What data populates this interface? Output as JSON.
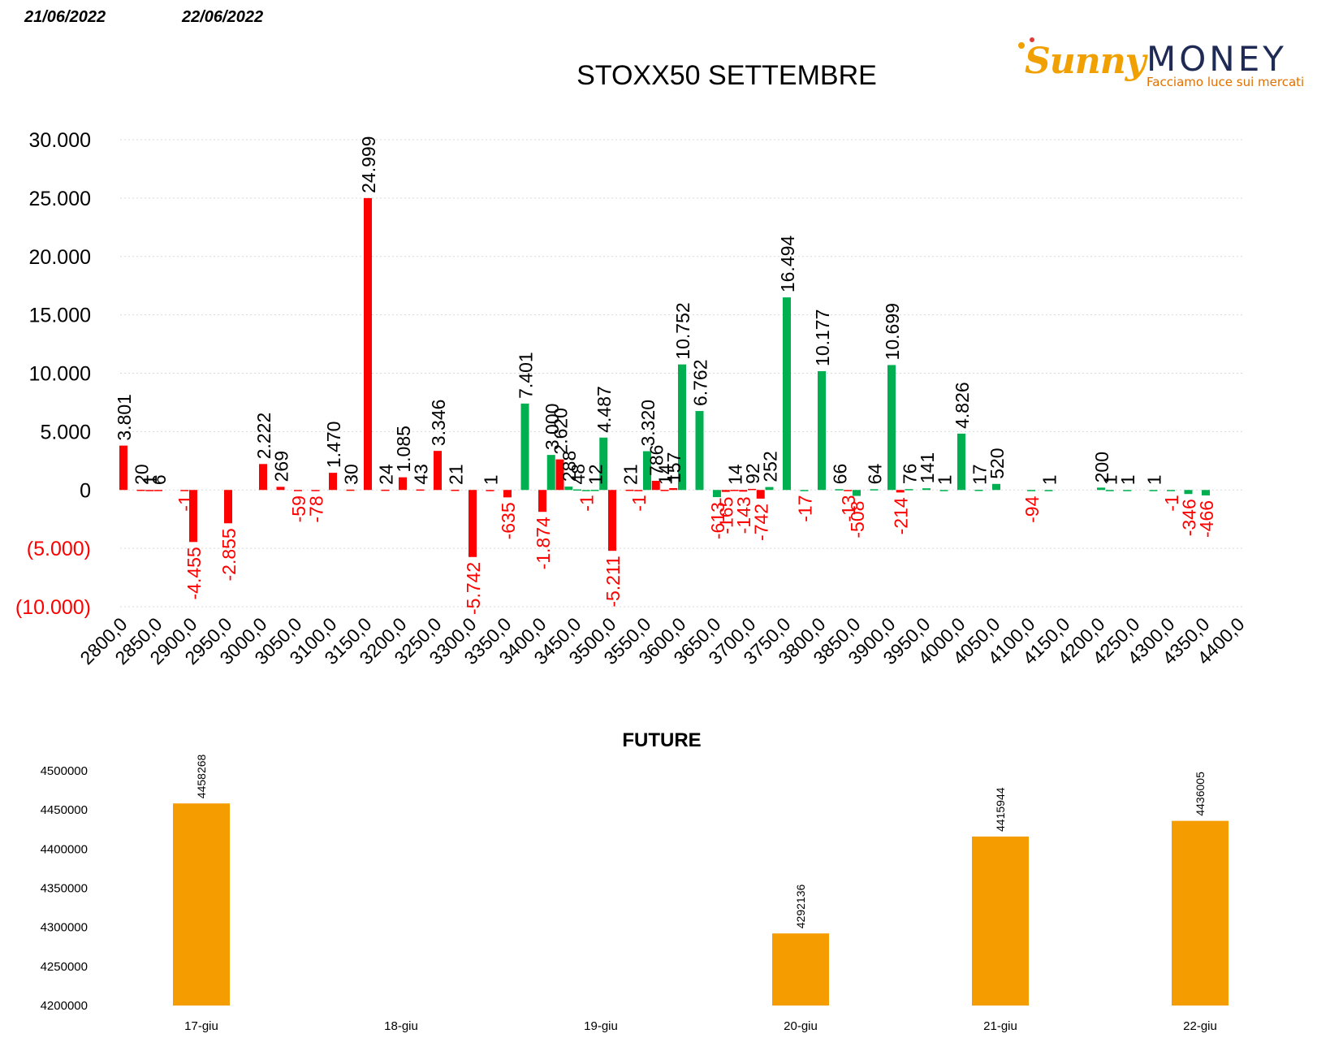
{
  "dates": [
    "21/06/2022",
    "22/06/2022"
  ],
  "logo": {
    "brand_sunny": "Sunny",
    "brand_money": "MONEY",
    "tagline": "Facciamo luce sui mercati"
  },
  "colors": {
    "negative": "#ff0000",
    "positive": "#00b050",
    "future_bar": "#f59c00",
    "grid": "#d9d9d9",
    "text": "#000000"
  },
  "chart_data": [
    {
      "type": "bar",
      "title": "STOXX50 SETTEMBRE",
      "ylim": [
        -10000,
        30000
      ],
      "yticks": [
        {
          "value": 30000,
          "label": "30.000"
        },
        {
          "value": 25000,
          "label": "25.000"
        },
        {
          "value": 20000,
          "label": "20.000"
        },
        {
          "value": 15000,
          "label": "15.000"
        },
        {
          "value": 10000,
          "label": "10.000"
        },
        {
          "value": 5000,
          "label": "5.000"
        },
        {
          "value": 0,
          "label": "0"
        },
        {
          "value": -5000,
          "label": "(5.000)"
        },
        {
          "value": -10000,
          "label": "(10.000)"
        }
      ],
      "grid": true,
      "legend": "none",
      "categories": [
        "2800,0",
        "2850,0",
        "2900,0",
        "2950,0",
        "3000,0",
        "3050,0",
        "3100,0",
        "3150,0",
        "3200,0",
        "3250,0",
        "3300,0",
        "3350,0",
        "3400,0",
        "3450,0",
        "3500,0",
        "3550,0",
        "3600,0",
        "3650,0",
        "3700,0",
        "3750,0",
        "3800,0",
        "3850,0",
        "3900,0",
        "3950,0",
        "4000,0",
        "4050,0",
        "4100,0",
        "4150,0",
        "4200,0",
        "4250,0",
        "4300,0",
        "4350,0",
        "4400,0"
      ],
      "points": [
        {
          "x": 2800,
          "value": 3801,
          "label": "3.801",
          "color": "red"
        },
        {
          "x": 2825,
          "value": 20,
          "label": "20",
          "color": "red"
        },
        {
          "x": 2837.5,
          "value": 1,
          "label": "1",
          "color": "red"
        },
        {
          "x": 2850,
          "value": 6,
          "label": "6",
          "color": "red"
        },
        {
          "x": 2887.5,
          "value": -1,
          "label": "-1",
          "color": "red"
        },
        {
          "x": 2900,
          "value": -4455,
          "label": "-4.455",
          "color": "red"
        },
        {
          "x": 2950,
          "value": -2855,
          "label": "-2.855",
          "color": "red"
        },
        {
          "x": 3000,
          "value": 2222,
          "label": "2.222",
          "color": "red"
        },
        {
          "x": 3025,
          "value": 269,
          "label": "269",
          "color": "red"
        },
        {
          "x": 3050,
          "value": -59,
          "label": "-59",
          "color": "red"
        },
        {
          "x": 3075,
          "value": -78,
          "label": "-78",
          "color": "red"
        },
        {
          "x": 3100,
          "value": 1470,
          "label": "1.470",
          "color": "red"
        },
        {
          "x": 3125,
          "value": 30,
          "label": "30",
          "color": "red"
        },
        {
          "x": 3150,
          "value": 24999,
          "label": "24.999",
          "color": "red"
        },
        {
          "x": 3175,
          "value": 24,
          "label": "24",
          "color": "red"
        },
        {
          "x": 3200,
          "value": 1085,
          "label": "1.085",
          "color": "red"
        },
        {
          "x": 3225,
          "value": 43,
          "label": "43",
          "color": "red"
        },
        {
          "x": 3250,
          "value": 3346,
          "label": "3.346",
          "color": "red"
        },
        {
          "x": 3275,
          "value": 21,
          "label": "21",
          "color": "red"
        },
        {
          "x": 3300,
          "value": -5742,
          "label": "-5.742",
          "color": "red"
        },
        {
          "x": 3325,
          "value": 1,
          "label": "1",
          "color": "red"
        },
        {
          "x": 3350,
          "value": -635,
          "label": "-635",
          "color": "red"
        },
        {
          "x": 3375,
          "value": 7401,
          "label": "7.401",
          "color": "green"
        },
        {
          "x": 3400,
          "value": -1874,
          "label": "-1.874",
          "color": "red"
        },
        {
          "x": 3412.5,
          "value": 3000,
          "label": "3.000",
          "color": "green"
        },
        {
          "x": 3425,
          "value": 2620,
          "label": "2.620",
          "color": "red"
        },
        {
          "x": 3437.5,
          "value": 288,
          "label": "288",
          "color": "green"
        },
        {
          "x": 3450,
          "value": 48,
          "label": "48",
          "color": "green"
        },
        {
          "x": 3462.5,
          "value": -1,
          "label": "-1",
          "color": "green"
        },
        {
          "x": 3475,
          "value": 12,
          "label": "12",
          "color": "green"
        },
        {
          "x": 3487.5,
          "value": 4487,
          "label": "4.487",
          "color": "green"
        },
        {
          "x": 3500,
          "value": -5211,
          "label": "-5.211",
          "color": "red"
        },
        {
          "x": 3525,
          "value": 21,
          "label": "21",
          "color": "red"
        },
        {
          "x": 3537.5,
          "value": -1,
          "label": "-1",
          "color": "red"
        },
        {
          "x": 3550,
          "value": 3320,
          "label": "3.320",
          "color": "green"
        },
        {
          "x": 3562.5,
          "value": 786,
          "label": "786",
          "color": "red"
        },
        {
          "x": 3575,
          "value": 14,
          "label": "14",
          "color": "red"
        },
        {
          "x": 3587.5,
          "value": 157,
          "label": "157",
          "color": "red"
        },
        {
          "x": 3600,
          "value": 10752,
          "label": "10.752",
          "color": "green"
        },
        {
          "x": 3625,
          "value": 6762,
          "label": "6.762",
          "color": "green"
        },
        {
          "x": 3650,
          "value": -613,
          "label": "-613",
          "color": "green"
        },
        {
          "x": 3662.5,
          "value": -165,
          "label": "-165",
          "color": "red"
        },
        {
          "x": 3675,
          "value": 14,
          "label": "14",
          "color": "red"
        },
        {
          "x": 3687.5,
          "value": -143,
          "label": "-143",
          "color": "red"
        },
        {
          "x": 3700,
          "value": 92,
          "label": "92",
          "color": "red"
        },
        {
          "x": 3712.5,
          "value": -742,
          "label": "-742",
          "color": "red"
        },
        {
          "x": 3725,
          "value": 252,
          "label": "252",
          "color": "green"
        },
        {
          "x": 3750,
          "value": 16494,
          "label": "16.494",
          "color": "green"
        },
        {
          "x": 3775,
          "value": -17,
          "label": "-17",
          "color": "green"
        },
        {
          "x": 3800,
          "value": 10177,
          "label": "10.177",
          "color": "green"
        },
        {
          "x": 3825,
          "value": 66,
          "label": "66",
          "color": "green"
        },
        {
          "x": 3837.5,
          "value": -13,
          "label": "-13",
          "color": "red"
        },
        {
          "x": 3850,
          "value": -508,
          "label": "-508",
          "color": "green"
        },
        {
          "x": 3875,
          "value": 64,
          "label": "64",
          "color": "green"
        },
        {
          "x": 3900,
          "value": 10699,
          "label": "10.699",
          "color": "green"
        },
        {
          "x": 3912.5,
          "value": -214,
          "label": "-214",
          "color": "red"
        },
        {
          "x": 3925,
          "value": 76,
          "label": "76",
          "color": "green"
        },
        {
          "x": 3950,
          "value": 141,
          "label": "141",
          "color": "green"
        },
        {
          "x": 3975,
          "value": 1,
          "label": "1",
          "color": "green"
        },
        {
          "x": 4000,
          "value": 4826,
          "label": "4.826",
          "color": "green"
        },
        {
          "x": 4025,
          "value": 17,
          "label": "17",
          "color": "green"
        },
        {
          "x": 4050,
          "value": 520,
          "label": "520",
          "color": "green"
        },
        {
          "x": 4100,
          "value": -94,
          "label": "-94",
          "color": "green"
        },
        {
          "x": 4125,
          "value": 1,
          "label": "1",
          "color": "green"
        },
        {
          "x": 4200,
          "value": 200,
          "label": "200",
          "color": "green"
        },
        {
          "x": 4212.5,
          "value": 1,
          "label": "1",
          "color": "green"
        },
        {
          "x": 4237.5,
          "value": 1,
          "label": "1",
          "color": "green"
        },
        {
          "x": 4275,
          "value": 1,
          "label": "1",
          "color": "green"
        },
        {
          "x": 4300,
          "value": -1,
          "label": "-1",
          "color": "green"
        },
        {
          "x": 4325,
          "value": -346,
          "label": "-346",
          "color": "green"
        },
        {
          "x": 4350,
          "value": -466,
          "label": "-466",
          "color": "green"
        }
      ]
    },
    {
      "type": "bar",
      "title": "FUTURE",
      "ylim": [
        4200000,
        4500000
      ],
      "yticks": [
        "4500000",
        "4450000",
        "4400000",
        "4350000",
        "4300000",
        "4250000",
        "4200000"
      ],
      "categories": [
        "17-giu",
        "18-giu",
        "19-giu",
        "20-giu",
        "21-giu",
        "22-giu"
      ],
      "values": [
        4458268,
        null,
        null,
        4292136,
        4415944,
        4436005
      ],
      "labels": [
        "4458268",
        "",
        "",
        "4292136",
        "4415944",
        "4436005"
      ],
      "grid": false,
      "legend": "none"
    }
  ]
}
